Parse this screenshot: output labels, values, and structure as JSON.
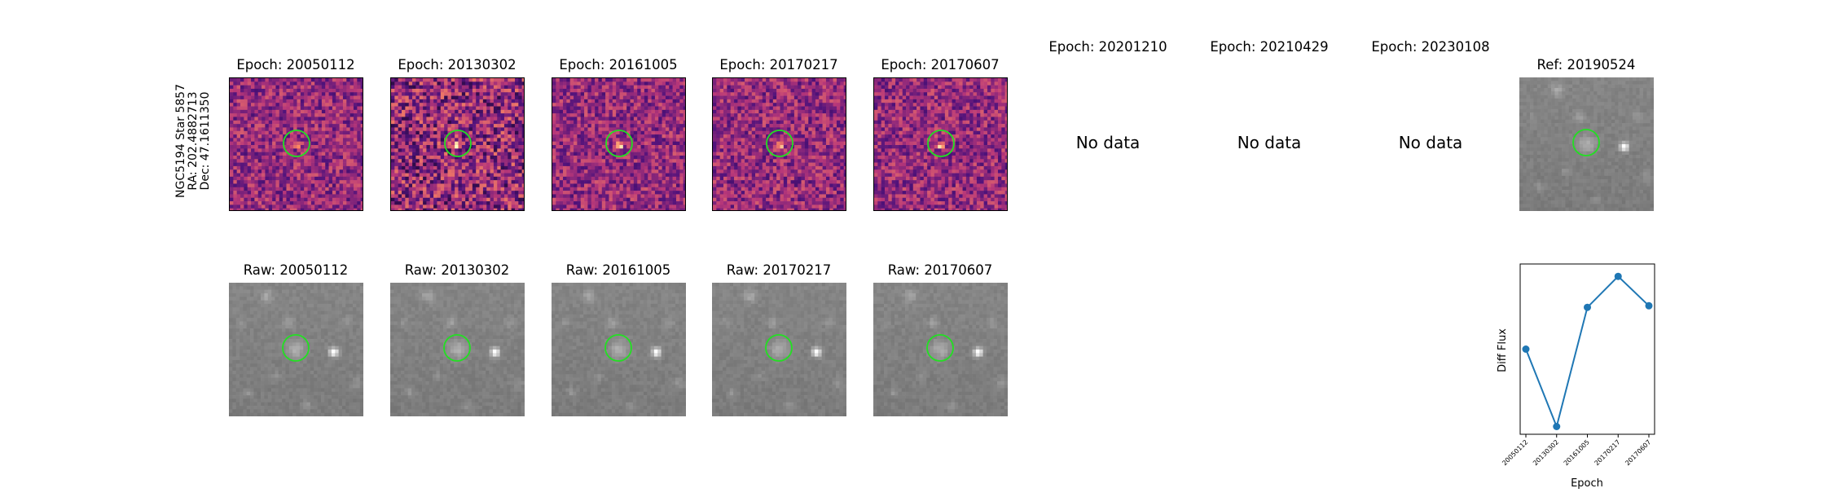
{
  "object_label": {
    "line1": "NGC5194 Star 5857",
    "line2": "RA: 202.4882713",
    "line3": "Dec: 47.1611350"
  },
  "epoch_titles": [
    "Epoch: 20050112",
    "Epoch: 20130302",
    "Epoch: 20161005",
    "Epoch: 20170217",
    "Epoch: 20170607",
    "Epoch: 20201210",
    "Epoch: 20210429",
    "Epoch: 20230108"
  ],
  "no_data_text": "No data",
  "ref_title": "Ref: 20190524",
  "raw_titles": [
    "Raw: 20050112",
    "Raw: 20130302",
    "Raw: 20161005",
    "Raw: 20170217",
    "Raw: 20170607"
  ],
  "colors": {
    "aperture_circle": "#22e022",
    "diff_colormap": "magma",
    "raw_colormap": "gray",
    "line": "#1f77b4"
  },
  "chart_data": {
    "type": "line",
    "xlabel": "Epoch",
    "ylabel": "Diff Flux",
    "categories": [
      "20050112",
      "20130302",
      "20161005",
      "20170217",
      "20170607"
    ],
    "values": [
      0.55,
      0.05,
      0.82,
      1.02,
      0.83
    ],
    "ylim": [
      0.0,
      1.1
    ],
    "y_ticks_shown": false,
    "grid": false
  }
}
